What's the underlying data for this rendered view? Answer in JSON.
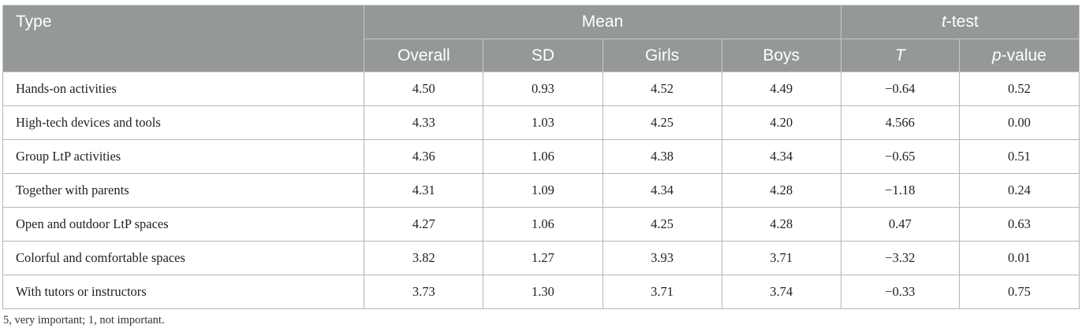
{
  "table": {
    "headers": {
      "type": "Type",
      "mean_group": "Mean",
      "ttest_group": "t-test",
      "ttest_group_italic": "t",
      "ttest_group_rest": "-test",
      "overall": "Overall",
      "sd": "SD",
      "girls": "Girls",
      "boys": "Boys",
      "t": "T",
      "p_value": "p-value",
      "p_value_italic": "p",
      "p_value_rest": "-value"
    },
    "rows": [
      {
        "type": "Hands-on activities",
        "overall": "4.50",
        "sd": "0.93",
        "girls": "4.52",
        "boys": "4.49",
        "t": "−0.64",
        "p": "0.52"
      },
      {
        "type": "High-tech devices and tools",
        "overall": "4.33",
        "sd": "1.03",
        "girls": "4.25",
        "boys": "4.20",
        "t": "4.566",
        "p": "0.00"
      },
      {
        "type": "Group LtP activities",
        "overall": "4.36",
        "sd": "1.06",
        "girls": "4.38",
        "boys": "4.34",
        "t": "−0.65",
        "p": "0.51"
      },
      {
        "type": "Together with parents",
        "overall": "4.31",
        "sd": "1.09",
        "girls": "4.34",
        "boys": "4.28",
        "t": "−1.18",
        "p": "0.24"
      },
      {
        "type": "Open and outdoor LtP spaces",
        "overall": "4.27",
        "sd": "1.06",
        "girls": "4.25",
        "boys": "4.28",
        "t": "0.47",
        "p": "0.63"
      },
      {
        "type": "Colorful and comfortable spaces",
        "overall": "3.82",
        "sd": "1.27",
        "girls": "3.93",
        "boys": "3.71",
        "t": "−3.32",
        "p": "0.01"
      },
      {
        "type": "With tutors or instructors",
        "overall": "3.73",
        "sd": "1.30",
        "girls": "3.71",
        "boys": "3.74",
        "t": "−0.33",
        "p": "0.75"
      }
    ]
  },
  "footnote": "5, very important; 1, not important.",
  "colors": {
    "header_bg": "#959899",
    "header_text": "#ffffff",
    "grid_line": "#b5b5b5"
  }
}
